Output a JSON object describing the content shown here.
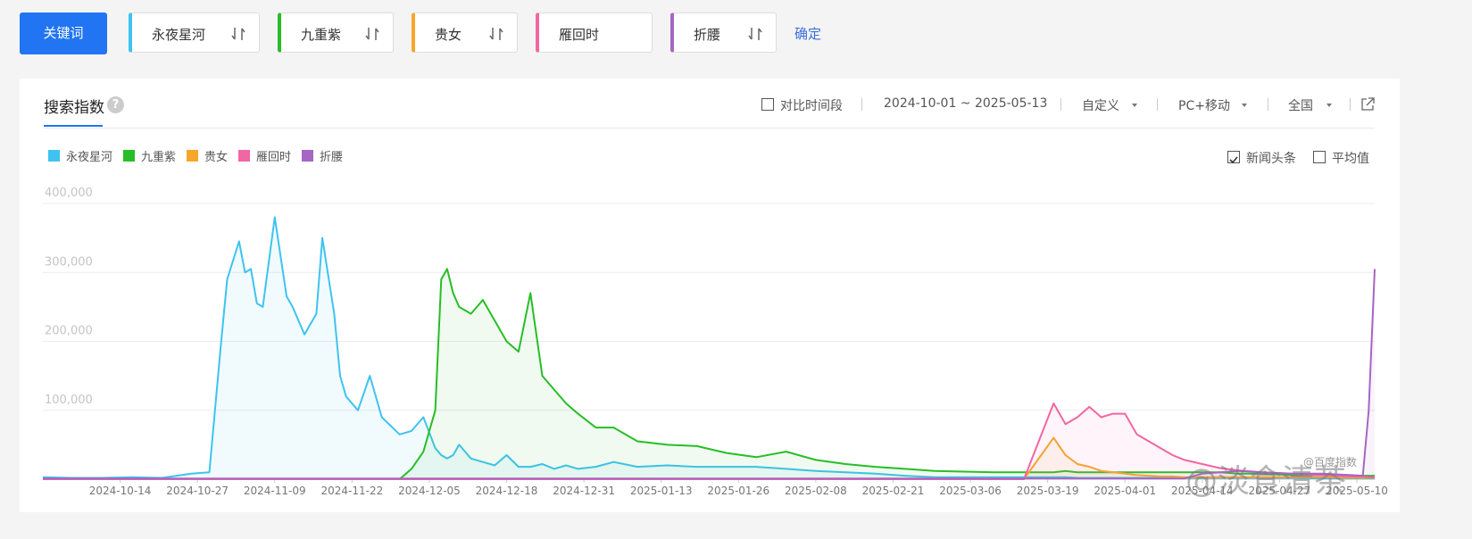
{
  "toolbar": {
    "button": "关键词",
    "keywords": [
      "永夜星河",
      "九重紫",
      "贵女",
      "雁回时",
      "折腰"
    ],
    "confirm": "确定"
  },
  "panel": {
    "tab": "搜索指数",
    "help": "?",
    "compare": "对比时间段",
    "date_range": "2024-10-01 ~ 2025-05-13",
    "custom": "自定义",
    "device": "PC+移动",
    "region": "全国",
    "news": "新闻头条",
    "average": "平均值"
  },
  "watermarks": [
    "@百度指数",
    "@淡食清茶"
  ],
  "chart_data": {
    "type": "line",
    "grid": true,
    "xlim": [
      "2024-10-01",
      "2025-05-13"
    ],
    "xticks": [
      "2024-10-14",
      "2024-10-27",
      "2024-11-09",
      "2024-11-22",
      "2024-12-05",
      "2024-12-18",
      "2024-12-31",
      "2025-01-13",
      "2025-01-26",
      "2025-02-08",
      "2025-02-21",
      "2025-03-06",
      "2025-03-19",
      "2025-04-01",
      "2025-04-14",
      "2025-04-27",
      "2025-05-10"
    ],
    "ylim": [
      0,
      400000
    ],
    "yticks": [
      {
        "value": 100000,
        "label": "100,000"
      },
      {
        "value": 200000,
        "label": "200,000"
      },
      {
        "value": 300000,
        "label": "300,000"
      },
      {
        "value": 400000,
        "label": "400,000"
      }
    ],
    "x": [
      "2024-10-01",
      "2024-10-06",
      "2024-10-11",
      "2024-10-16",
      "2024-10-21",
      "2024-10-26",
      "2024-10-29",
      "2024-10-31",
      "2024-11-01",
      "2024-11-03",
      "2024-11-04",
      "2024-11-05",
      "2024-11-06",
      "2024-11-07",
      "2024-11-09",
      "2024-11-11",
      "2024-11-12",
      "2024-11-14",
      "2024-11-16",
      "2024-11-17",
      "2024-11-19",
      "2024-11-20",
      "2024-11-21",
      "2024-11-23",
      "2024-11-25",
      "2024-11-27",
      "2024-11-30",
      "2024-12-02",
      "2024-12-04",
      "2024-12-06",
      "2024-12-07",
      "2024-12-08",
      "2024-12-09",
      "2024-12-10",
      "2024-12-12",
      "2024-12-14",
      "2024-12-16",
      "2024-12-18",
      "2024-12-20",
      "2024-12-22",
      "2024-12-24",
      "2024-12-26",
      "2024-12-28",
      "2024-12-30",
      "2025-01-02",
      "2025-01-05",
      "2025-01-09",
      "2025-01-14",
      "2025-01-19",
      "2025-01-24",
      "2025-01-29",
      "2025-02-03",
      "2025-02-08",
      "2025-02-13",
      "2025-02-18",
      "2025-02-23",
      "2025-02-28",
      "2025-03-05",
      "2025-03-10",
      "2025-03-15",
      "2025-03-20",
      "2025-03-22",
      "2025-03-24",
      "2025-03-26",
      "2025-03-28",
      "2025-03-30",
      "2025-04-01",
      "2025-04-03",
      "2025-04-05",
      "2025-04-07",
      "2025-04-09",
      "2025-04-11",
      "2025-04-14",
      "2025-04-17",
      "2025-04-20",
      "2025-04-24",
      "2025-04-29",
      "2025-05-04",
      "2025-05-09",
      "2025-05-11",
      "2025-05-12",
      "2025-05-13"
    ],
    "series": [
      {
        "name": "永夜星河",
        "color": "#3ec3f0",
        "values": [
          3000,
          2000,
          2000,
          3000,
          2000,
          8000,
          10000,
          200000,
          290000,
          345000,
          300000,
          305000,
          255000,
          250000,
          380000,
          265000,
          250000,
          210000,
          240000,
          350000,
          240000,
          150000,
          120000,
          100000,
          150000,
          90000,
          65000,
          70000,
          90000,
          45000,
          35000,
          30000,
          35000,
          50000,
          30000,
          25000,
          20000,
          35000,
          18000,
          18000,
          22000,
          15000,
          20000,
          15000,
          18000,
          25000,
          18000,
          20000,
          18000,
          18000,
          18000,
          15000,
          12000,
          10000,
          8000,
          5000,
          3000,
          3000,
          3000,
          3000,
          3000,
          3000,
          2000,
          2000,
          2000,
          2000,
          2000,
          2000,
          2000,
          2000,
          2000,
          2000,
          2000,
          2000,
          2000,
          2000,
          2000,
          1000,
          1000,
          1000,
          1000,
          1000
        ]
      },
      {
        "name": "九重紫",
        "color": "#27be27",
        "values": [
          0,
          0,
          0,
          0,
          0,
          0,
          0,
          0,
          0,
          0,
          0,
          0,
          0,
          0,
          0,
          0,
          0,
          0,
          0,
          0,
          0,
          0,
          0,
          0,
          0,
          0,
          0,
          15000,
          40000,
          100000,
          290000,
          305000,
          270000,
          250000,
          240000,
          260000,
          230000,
          200000,
          185000,
          270000,
          150000,
          130000,
          110000,
          95000,
          75000,
          75000,
          55000,
          50000,
          48000,
          38000,
          32000,
          40000,
          28000,
          22000,
          18000,
          15000,
          12000,
          11000,
          10000,
          10000,
          10000,
          12000,
          10000,
          10000,
          10000,
          10000,
          10000,
          10000,
          10000,
          10000,
          10000,
          10000,
          10000,
          10000,
          8000,
          8000,
          6000,
          6000,
          5000,
          5000,
          5000,
          5000
        ]
      },
      {
        "name": "贵女",
        "color": "#f7a62a",
        "values": [
          0,
          0,
          0,
          0,
          0,
          0,
          0,
          0,
          0,
          0,
          0,
          0,
          0,
          0,
          0,
          0,
          0,
          0,
          0,
          0,
          0,
          0,
          0,
          0,
          0,
          0,
          0,
          0,
          0,
          0,
          0,
          0,
          0,
          0,
          0,
          0,
          0,
          0,
          0,
          0,
          0,
          0,
          0,
          0,
          0,
          0,
          0,
          0,
          0,
          0,
          0,
          0,
          0,
          0,
          0,
          0,
          0,
          0,
          0,
          0,
          60000,
          35000,
          22000,
          18000,
          12000,
          10000,
          8000,
          6000,
          5000,
          4000,
          4000,
          3000,
          3000,
          3000,
          3000,
          3000,
          3000,
          3000,
          2000,
          2000,
          2000,
          2000
        ]
      },
      {
        "name": "雁回时",
        "color": "#f266a3",
        "values": [
          0,
          0,
          0,
          0,
          0,
          0,
          0,
          0,
          0,
          0,
          0,
          0,
          0,
          0,
          0,
          0,
          0,
          0,
          0,
          0,
          0,
          0,
          0,
          0,
          0,
          0,
          0,
          0,
          0,
          0,
          0,
          0,
          0,
          0,
          0,
          0,
          0,
          0,
          0,
          0,
          0,
          0,
          0,
          0,
          0,
          0,
          0,
          0,
          0,
          0,
          0,
          0,
          0,
          0,
          0,
          0,
          0,
          0,
          0,
          0,
          110000,
          80000,
          90000,
          105000,
          90000,
          95000,
          95000,
          65000,
          55000,
          45000,
          35000,
          28000,
          22000,
          16000,
          13000,
          10000,
          8000,
          6000,
          4000,
          4000,
          3000,
          3000
        ]
      },
      {
        "name": "折腰",
        "color": "#a765c4",
        "values": [
          1000,
          1000,
          1000,
          1000,
          1000,
          1000,
          1000,
          1000,
          1000,
          1000,
          1000,
          1000,
          1000,
          1000,
          1000,
          1000,
          1000,
          1000,
          1000,
          1000,
          1000,
          1000,
          1000,
          1000,
          1000,
          1000,
          1000,
          1000,
          1000,
          1000,
          1000,
          1000,
          1000,
          1000,
          1000,
          1000,
          1000,
          1000,
          1000,
          1000,
          1000,
          1000,
          1000,
          1000,
          1000,
          1000,
          1000,
          1000,
          1000,
          1000,
          1000,
          1000,
          1000,
          1000,
          1000,
          1000,
          1000,
          1000,
          1000,
          1000,
          1000,
          1000,
          1000,
          1000,
          1000,
          1000,
          1000,
          1000,
          1000,
          1000,
          1000,
          1000,
          8000,
          10000,
          12000,
          10000,
          8000,
          8000,
          6000,
          5000,
          100000,
          305000
        ]
      }
    ]
  }
}
